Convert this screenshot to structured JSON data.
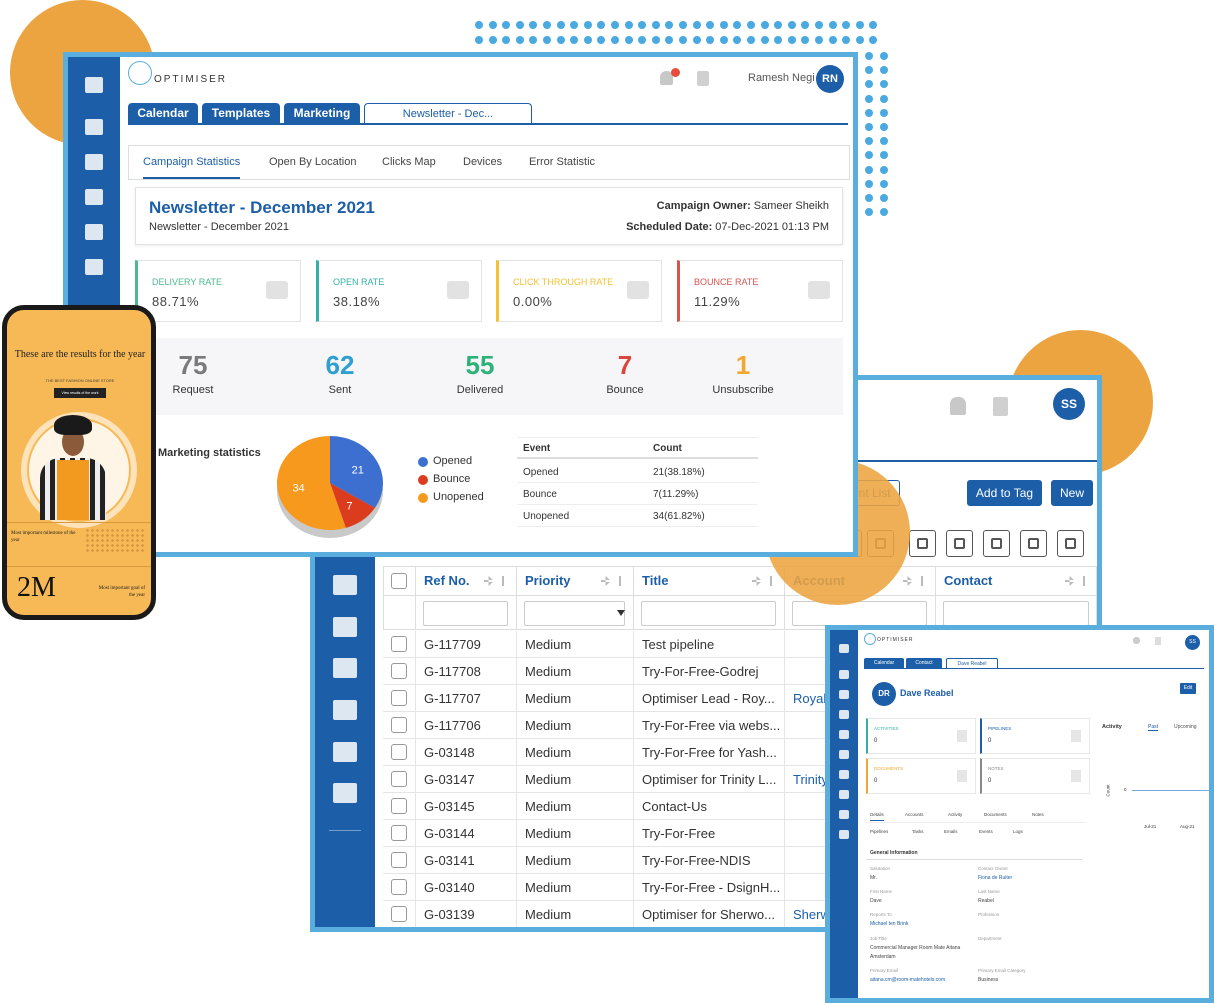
{
  "main": {
    "brand": "OPTIMISER",
    "user_name": "Ramesh Negi",
    "user_initials": "RN",
    "tabs": [
      "Calendar",
      "Templates",
      "Marketing",
      "Newsletter - Dec..."
    ],
    "subtabs": [
      "Campaign Statistics",
      "Open By Location",
      "Clicks Map",
      "Devices",
      "Error Statistic"
    ],
    "campaign": {
      "title": "Newsletter - December 2021",
      "subtitle": "Newsletter - December 2021",
      "owner_label": "Campaign Owner:",
      "owner": "Sameer Sheikh",
      "date_label": "Scheduled Date:",
      "date": "07-Dec-2021 01:13 PM"
    },
    "rates": [
      {
        "label": "DELIVERY RATE",
        "value": "88.71%",
        "color": "#4cb88f"
      },
      {
        "label": "OPEN RATE",
        "value": "38.18%",
        "color": "#36b0a6"
      },
      {
        "label": "CLICK THROUGH RATE",
        "value": "0.00%",
        "color": "#f1c232"
      },
      {
        "label": "BOUNCE RATE",
        "value": "11.29%",
        "color": "#d9534f"
      }
    ],
    "counts": [
      {
        "value": 75,
        "label": "Request",
        "color": "#7a7a7a"
      },
      {
        "value": 62,
        "label": "Sent",
        "color": "#2f9fd0"
      },
      {
        "value": 55,
        "label": "Delivered",
        "color": "#2db37a"
      },
      {
        "value": 7,
        "label": "Bounce",
        "color": "#d9463b"
      },
      {
        "value": 1,
        "label": "Unsubscribe",
        "color": "#f0a830"
      }
    ],
    "stats_title": "Marketing statistics",
    "event_table": {
      "headers": [
        "Event",
        "Count"
      ],
      "rows": [
        [
          "Opened",
          "21(38.18%)"
        ],
        [
          "Bounce",
          "7(11.29%)"
        ],
        [
          "Unopened",
          "34(61.82%)"
        ]
      ]
    }
  },
  "chart_data": {
    "type": "pie",
    "categories": [
      "Opened",
      "Bounce",
      "Unopened"
    ],
    "values": [
      21,
      7,
      34
    ],
    "colors": [
      "#3d6fd0",
      "#dc3c1e",
      "#f7991c"
    ]
  },
  "list": {
    "user_initials": "SS",
    "buttons": [
      "Create Recipient List",
      "Add to Tag",
      "New"
    ],
    "headers": [
      "Ref No.",
      "Priority",
      "Title",
      "Account",
      "Contact"
    ],
    "rows": [
      {
        "ref": "G-117709",
        "priority": "Medium",
        "title": "Test pipeline"
      },
      {
        "ref": "G-117708",
        "priority": "Medium",
        "title": "Try-For-Free-Godrej"
      },
      {
        "ref": "G-117707",
        "priority": "Medium",
        "title": "Optimiser Lead - Roy...",
        "account": "Royal"
      },
      {
        "ref": "G-117706",
        "priority": "Medium",
        "title": "Try-For-Free via webs..."
      },
      {
        "ref": "G-03148",
        "priority": "Medium",
        "title": "Try-For-Free for Yash..."
      },
      {
        "ref": "G-03147",
        "priority": "Medium",
        "title": "Optimiser for Trinity L...",
        "account": "Trinity"
      },
      {
        "ref": "G-03145",
        "priority": "Medium",
        "title": "Contact-Us"
      },
      {
        "ref": "G-03144",
        "priority": "Medium",
        "title": "Try-For-Free"
      },
      {
        "ref": "G-03141",
        "priority": "Medium",
        "title": "Try-For-Free-NDIS"
      },
      {
        "ref": "G-03140",
        "priority": "Medium",
        "title": "Try-For-Free - DsignH..."
      },
      {
        "ref": "G-03139",
        "priority": "Medium",
        "title": "Optimiser for Sherwo...",
        "account": "Sherw"
      }
    ]
  },
  "contact": {
    "brand": "OPTIMISER",
    "user_initials": "SS",
    "tabs": [
      "Calendar",
      "Contact",
      "Dave Reabel"
    ],
    "initials": "DR",
    "name": "Dave Reabel",
    "edit": "Edit",
    "cards": [
      {
        "label": "ACTIVITIES",
        "value": "0",
        "color": "#36b0a6"
      },
      {
        "label": "PIPELINES",
        "value": "0",
        "color": "#1c5ea8"
      },
      {
        "label": "DOCUMENTS",
        "value": "0",
        "color": "#f0a830"
      },
      {
        "label": "NOTES",
        "value": "0",
        "color": "#888888"
      }
    ],
    "activity": {
      "title": "Activity",
      "past": "Past",
      "upcoming": "Upcoming",
      "axis": "Count",
      "zero": "0",
      "months": [
        "Jul-21",
        "Aug-21"
      ]
    },
    "section_tabs": [
      [
        "Details",
        "Accounts",
        "Activity",
        "Documents",
        "Notes"
      ],
      [
        "Pipelines",
        "Tasks",
        "Emails",
        "Events",
        "Logs"
      ]
    ],
    "section_title": "General Information",
    "fields": [
      {
        "label": "Salutation",
        "value": "Mr."
      },
      {
        "label": "Contact Owner",
        "value": "Fiona de Ruiter"
      },
      {
        "label": "First Name",
        "value": "Dave"
      },
      {
        "label": "Last Name",
        "value": "Reabel"
      },
      {
        "label": "Reports To",
        "value": "Michael ten Brink"
      },
      {
        "label": "Profession"
      },
      {
        "label": "Job Title",
        "value": "Commercial Manager Room Mate Aitana Amsterdam"
      },
      {
        "label": "Department"
      },
      {
        "label": "Primary Email",
        "value": "aitana.cm@room-matehotels.com"
      },
      {
        "label": "Primary Email Category",
        "value": "Business"
      }
    ]
  },
  "phone": {
    "headline": "These are the results for the year",
    "tagline": "THE BEST FASHION ONLINE STORE",
    "cta": "View results of the work",
    "milestone": "Most important milestone of the year",
    "big": "2M",
    "goal": "Most important goal of the year"
  }
}
